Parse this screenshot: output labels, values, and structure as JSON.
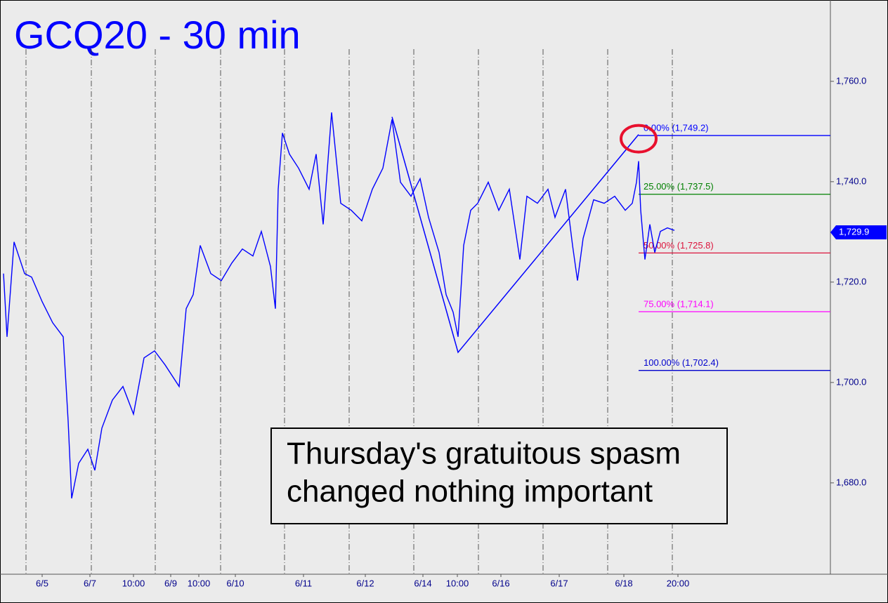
{
  "chart_data": {
    "type": "line",
    "title": "GCQ20 - 30 min",
    "x": [
      2.5,
      5,
      10,
      17.5,
      22.5,
      30,
      37.5,
      45,
      48.5,
      51,
      56,
      62.5,
      67.5,
      72.5,
      80,
      87.5,
      95,
      102.5,
      110,
      117.5,
      127.5,
      132.5,
      137.5,
      142.5,
      150,
      157.5,
      165,
      172.5,
      180,
      186,
      192.5,
      196,
      198,
      201,
      206,
      212.5,
      220,
      225,
      230,
      236,
      242.5,
      250,
      257.5,
      265,
      272.5,
      279,
      285,
      292.5,
      299,
      305,
      312.5,
      317.5,
      322.5,
      326,
      330,
      335,
      340,
      347.5,
      355,
      362.5,
      370,
      375,
      382.5,
      390,
      395,
      402.5,
      407.5,
      411,
      415,
      422.5,
      430,
      437.5,
      445,
      450,
      453,
      454.5,
      456,
      459,
      462.5,
      466,
      470,
      475,
      480
    ],
    "series": [
      {
        "name": "GCQ20",
        "color": "#0000ff",
        "values": [
          1721.7,
          1709.1,
          1728.0,
          1721.7,
          1721.0,
          1716.1,
          1711.9,
          1709.1,
          1692.3,
          1676.9,
          1683.9,
          1686.7,
          1682.5,
          1690.9,
          1696.5,
          1699.2,
          1693.7,
          1704.9,
          1706.3,
          1703.5,
          1699.2,
          1714.7,
          1717.5,
          1727.3,
          1721.7,
          1720.3,
          1723.8,
          1726.6,
          1725.2,
          1730.1,
          1723.1,
          1714.7,
          1738.5,
          1749.7,
          1745.5,
          1742.7,
          1738.5,
          1745.5,
          1731.5,
          1753.8,
          1735.7,
          1734.3,
          1732.2,
          1738.5,
          1742.7,
          1752.4,
          1739.9,
          1737.1,
          1740.6,
          1732.9,
          1725.9,
          1717.5,
          1714.0,
          1709.1,
          1727.3,
          1734.3,
          1735.7,
          1739.9,
          1734.3,
          1738.5,
          1724.5,
          1737.1,
          1735.7,
          1738.5,
          1732.9,
          1738.5,
          1727.3,
          1720.3,
          1728.7,
          1736.4,
          1735.7,
          1737.1,
          1734.3,
          1735.7,
          1739.9,
          1744.1,
          1734.3,
          1724.5,
          1731.5,
          1725.9,
          1730.1,
          1730.8,
          1730.3
        ]
      }
    ],
    "xlim": [
      0,
      591
    ],
    "ylim": [
      1661.8,
      1776.2
    ],
    "yticks": [
      {
        "value": 1680,
        "label": "1,680.0"
      },
      {
        "value": 1700,
        "label": "1,700.0"
      },
      {
        "value": 1720,
        "label": "1,720.0"
      },
      {
        "value": 1740,
        "label": "1,740.0"
      },
      {
        "value": 1760,
        "label": "1,760.0"
      }
    ],
    "xticks": [
      {
        "value": 30,
        "label": "6/5"
      },
      {
        "value": 64,
        "label": "6/7"
      },
      {
        "value": 95,
        "label": "10:00"
      },
      {
        "value": 121.5,
        "label": "6/9"
      },
      {
        "value": 141.5,
        "label": "10:00"
      },
      {
        "value": 167.5,
        "label": "6/10"
      },
      {
        "value": 216,
        "label": "6/11"
      },
      {
        "value": 260,
        "label": "6/12"
      },
      {
        "value": 301,
        "label": "6/14"
      },
      {
        "value": 325.5,
        "label": "10:00"
      },
      {
        "value": 356.5,
        "label": "6/16"
      },
      {
        "value": 398,
        "label": "6/17"
      },
      {
        "value": 444,
        "label": "6/18"
      },
      {
        "value": 482.5,
        "label": "20:00"
      }
    ],
    "xgrid": [
      18.5,
      65,
      110.5,
      157,
      202.5,
      248.5,
      294.5,
      340.5,
      386.5,
      432.5,
      478.5
    ],
    "fib_start": 454.5,
    "fib_levels": [
      {
        "value": 1749.2,
        "label": "0.00% (1,749.2)",
        "color": "#0000ff"
      },
      {
        "value": 1737.5,
        "label": "25.00% (1,737.5)",
        "color": "#008000"
      },
      {
        "value": 1725.8,
        "label": "50.00% (1,725.8)",
        "color": "#dc143c"
      },
      {
        "value": 1714.1,
        "label": "75.00% (1,714.1)",
        "color": "#ff00ff"
      },
      {
        "value": 1702.4,
        "label": "100.00% (1,702.4)",
        "color": "#0000cd"
      }
    ],
    "trend_x": [
      279,
      326,
      454.5
    ],
    "trend_y": [
      1752.9,
      1706.0,
      1749.4
    ],
    "last_price": {
      "value": 1729.9,
      "label": "1,729.9"
    },
    "annotation": [
      "Thursday's gratuitous spasm",
      "changed nothing important"
    ]
  }
}
